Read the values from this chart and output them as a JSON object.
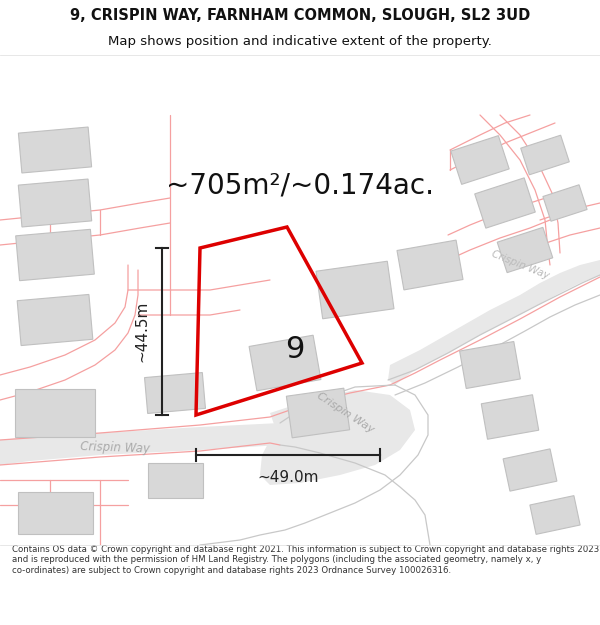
{
  "title_line1": "9, CRISPIN WAY, FARNHAM COMMON, SLOUGH, SL2 3UD",
  "title_line2": "Map shows position and indicative extent of the property.",
  "area_text": "~705m²/~0.174ac.",
  "dim_height": "~44.5m",
  "dim_width": "~49.0m",
  "property_label": "9",
  "copyright_text": "Contains OS data © Crown copyright and database right 2021. This information is subject to Crown copyright and database rights 2023 and is reproduced with the permission of HM Land Registry. The polygons (including the associated geometry, namely x, y co-ordinates) are subject to Crown copyright and database rights 2023 Ordnance Survey 100026316.",
  "bg_color": "#ffffff",
  "map_bg": "#f8f8f8",
  "road_fill": "#e8e8e8",
  "road_line": "#f5a0a0",
  "road_line_gray": "#c8c8c8",
  "building_fill": "#d8d8d8",
  "building_stroke": "#c0c0c0",
  "property_stroke": "#dd0000",
  "dim_color": "#222222",
  "area_color": "#111111",
  "title_color": "#111111",
  "copyright_color": "#333333",
  "road_label_color": "#aaaaaa",
  "road_label_color2": "#bbbbbb"
}
